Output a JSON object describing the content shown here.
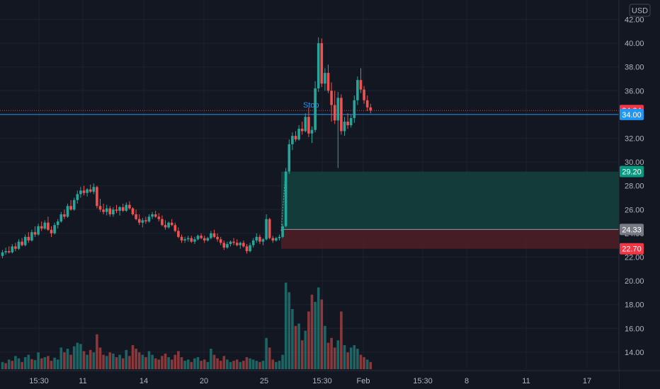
{
  "chart_data": {
    "type": "candlestick",
    "currency": "USD",
    "colors": {
      "background": "#131722",
      "up": "#26a69a",
      "down": "#ef5350",
      "grid": "#1e222d",
      "axis_text": "#b2b5be",
      "target_zone": "#123d3c",
      "stop_zone": "#4a1e26",
      "level_line": "#2196f3",
      "price_line": "#f23645",
      "entry_tag": "#787b86"
    },
    "price_axis": {
      "ticks": [
        "42.00",
        "40.00",
        "38.00",
        "36.00",
        "34.00",
        "32.00",
        "30.00",
        "28.00",
        "26.00",
        "24.00",
        "22.00",
        "20.00",
        "18.00",
        "16.00",
        "14.00"
      ],
      "min": 12.4,
      "max": 43.2
    },
    "time_axis": {
      "ticks": [
        "15:30",
        "11",
        "14",
        "20",
        "25",
        "15:30",
        "Feb",
        "15:30",
        "8",
        "11",
        "17"
      ]
    },
    "price_tags": [
      {
        "label": "34.34",
        "value": 34.34,
        "kind": "price"
      },
      {
        "label": "34.00",
        "value": 34.0,
        "kind": "level"
      },
      {
        "label": "29.20",
        "value": 29.2,
        "kind": "target"
      },
      {
        "label": "24.33",
        "value": 24.33,
        "kind": "entry"
      },
      {
        "label": "22.70",
        "value": 22.7,
        "kind": "stop"
      }
    ],
    "annotation": {
      "text": "Stop",
      "value": 34.0
    },
    "position": {
      "target": 29.2,
      "entry": 24.33,
      "stop": 22.7
    },
    "candles": [
      [
        22.1,
        22.6,
        21.9,
        22.4
      ],
      [
        22.4,
        22.8,
        22.2,
        22.5
      ],
      [
        22.5,
        22.9,
        22.3,
        22.4
      ],
      [
        22.4,
        23.1,
        22.3,
        22.9
      ],
      [
        22.9,
        23.2,
        22.5,
        22.7
      ],
      [
        22.7,
        23.5,
        22.6,
        23.3
      ],
      [
        23.3,
        23.6,
        22.9,
        23.0
      ],
      [
        23.0,
        23.9,
        22.9,
        23.7
      ],
      [
        23.7,
        24.1,
        23.2,
        23.4
      ],
      [
        23.4,
        24.3,
        23.3,
        24.1
      ],
      [
        24.1,
        24.6,
        23.7,
        23.9
      ],
      [
        23.9,
        24.8,
        23.8,
        24.6
      ],
      [
        24.6,
        25.0,
        24.2,
        24.4
      ],
      [
        24.4,
        25.1,
        24.3,
        24.9
      ],
      [
        24.9,
        25.4,
        24.2,
        24.3
      ],
      [
        24.3,
        24.6,
        23.7,
        24.0
      ],
      [
        24.0,
        24.9,
        23.9,
        24.7
      ],
      [
        24.7,
        25.2,
        24.4,
        25.0
      ],
      [
        25.0,
        25.8,
        24.9,
        25.6
      ],
      [
        25.6,
        26.0,
        25.2,
        25.4
      ],
      [
        25.4,
        26.5,
        25.3,
        26.3
      ],
      [
        26.3,
        26.8,
        25.9,
        26.0
      ],
      [
        26.0,
        27.0,
        25.9,
        26.8
      ],
      [
        26.8,
        27.6,
        26.5,
        27.3
      ],
      [
        27.3,
        27.9,
        27.0,
        27.6
      ],
      [
        27.6,
        28.0,
        27.2,
        27.4
      ],
      [
        27.4,
        27.8,
        27.1,
        27.7
      ],
      [
        27.7,
        28.1,
        27.4,
        27.5
      ],
      [
        27.5,
        28.2,
        27.3,
        27.9
      ],
      [
        27.9,
        28.0,
        26.1,
        26.3
      ],
      [
        26.3,
        26.9,
        25.8,
        26.0
      ],
      [
        26.0,
        26.5,
        25.6,
        25.8
      ],
      [
        25.8,
        26.4,
        25.5,
        26.1
      ],
      [
        26.1,
        26.3,
        25.4,
        25.6
      ],
      [
        25.6,
        26.2,
        25.4,
        26.0
      ],
      [
        26.0,
        26.4,
        25.7,
        25.9
      ],
      [
        25.9,
        26.3,
        25.5,
        26.2
      ],
      [
        26.2,
        26.5,
        25.8,
        25.9
      ],
      [
        25.9,
        26.6,
        25.8,
        26.4
      ],
      [
        26.4,
        26.7,
        26.0,
        26.1
      ],
      [
        26.1,
        26.2,
        25.5,
        25.6
      ],
      [
        25.6,
        26.0,
        25.1,
        25.2
      ],
      [
        25.2,
        25.6,
        24.7,
        24.9
      ],
      [
        24.9,
        25.3,
        24.5,
        25.1
      ],
      [
        25.1,
        25.4,
        24.8,
        25.0
      ],
      [
        25.0,
        25.6,
        24.9,
        25.4
      ],
      [
        25.4,
        25.8,
        25.2,
        25.6
      ],
      [
        25.6,
        25.9,
        25.3,
        25.4
      ],
      [
        25.4,
        25.7,
        25.0,
        25.2
      ],
      [
        25.2,
        25.5,
        24.6,
        24.7
      ],
      [
        24.7,
        25.1,
        24.3,
        24.5
      ],
      [
        24.5,
        25.0,
        24.4,
        24.9
      ],
      [
        24.9,
        25.2,
        24.6,
        24.7
      ],
      [
        24.7,
        24.9,
        24.1,
        24.2
      ],
      [
        24.2,
        24.5,
        23.6,
        23.7
      ],
      [
        23.7,
        23.9,
        23.2,
        23.4
      ],
      [
        23.4,
        23.7,
        23.2,
        23.5
      ],
      [
        23.5,
        23.8,
        23.3,
        23.6
      ],
      [
        23.6,
        23.8,
        23.2,
        23.3
      ],
      [
        23.3,
        23.7,
        23.1,
        23.5
      ],
      [
        23.5,
        23.9,
        23.4,
        23.8
      ],
      [
        23.8,
        24.0,
        23.5,
        23.6
      ],
      [
        23.6,
        23.8,
        23.2,
        23.4
      ],
      [
        23.4,
        23.7,
        23.3,
        23.6
      ],
      [
        23.6,
        24.2,
        23.5,
        24.0
      ],
      [
        24.0,
        24.3,
        23.6,
        23.7
      ],
      [
        23.7,
        24.0,
        23.3,
        23.5
      ],
      [
        23.5,
        23.7,
        23.0,
        23.2
      ],
      [
        23.2,
        23.4,
        22.6,
        22.8
      ],
      [
        22.8,
        23.3,
        22.7,
        23.1
      ],
      [
        23.1,
        23.4,
        22.9,
        23.3
      ],
      [
        23.3,
        23.6,
        23.0,
        23.2
      ],
      [
        23.2,
        23.5,
        22.9,
        23.0
      ],
      [
        23.0,
        23.3,
        22.7,
        23.2
      ],
      [
        23.2,
        23.4,
        22.8,
        22.9
      ],
      [
        22.9,
        23.1,
        22.3,
        22.5
      ],
      [
        22.5,
        23.2,
        22.4,
        23.0
      ],
      [
        23.0,
        23.6,
        22.8,
        23.4
      ],
      [
        23.4,
        24.0,
        23.2,
        23.7
      ],
      [
        23.7,
        23.9,
        23.1,
        23.3
      ],
      [
        23.3,
        23.6,
        23.0,
        23.5
      ],
      [
        23.5,
        25.6,
        23.4,
        25.2
      ],
      [
        25.2,
        25.3,
        23.5,
        23.6
      ],
      [
        23.6,
        23.8,
        23.2,
        23.4
      ],
      [
        23.4,
        23.7,
        23.3,
        23.6
      ],
      [
        23.6,
        23.9,
        23.4,
        23.7
      ],
      [
        23.7,
        24.8,
        23.6,
        24.6
      ],
      [
        24.6,
        29.5,
        24.5,
        29.2
      ],
      [
        29.2,
        31.9,
        29.0,
        31.5
      ],
      [
        31.5,
        32.5,
        31.0,
        32.2
      ],
      [
        32.2,
        32.6,
        31.7,
        31.9
      ],
      [
        31.9,
        33.1,
        31.8,
        32.8
      ],
      [
        32.8,
        33.4,
        32.3,
        32.6
      ],
      [
        32.6,
        34.1,
        32.5,
        33.8
      ],
      [
        33.8,
        34.6,
        32.1,
        32.4
      ],
      [
        32.4,
        33.0,
        31.6,
        32.7
      ],
      [
        32.7,
        36.8,
        32.5,
        36.2
      ],
      [
        36.2,
        40.5,
        35.9,
        40.0
      ],
      [
        40.0,
        40.4,
        36.3,
        36.6
      ],
      [
        36.6,
        37.9,
        36.0,
        37.5
      ],
      [
        37.5,
        38.2,
        35.8,
        36.0
      ],
      [
        36.0,
        36.7,
        33.4,
        34.8
      ],
      [
        34.8,
        36.0,
        33.2,
        33.5
      ],
      [
        33.5,
        35.9,
        29.5,
        35.4
      ],
      [
        35.4,
        35.7,
        32.3,
        32.6
      ],
      [
        32.6,
        33.8,
        32.2,
        33.4
      ],
      [
        33.4,
        34.1,
        32.8,
        33.1
      ],
      [
        33.1,
        34.0,
        32.9,
        33.7
      ],
      [
        33.7,
        35.6,
        33.3,
        35.2
      ],
      [
        35.2,
        37.2,
        34.8,
        36.9
      ],
      [
        36.9,
        37.9,
        35.8,
        36.1
      ],
      [
        36.1,
        36.4,
        34.9,
        35.2
      ],
      [
        35.2,
        35.6,
        34.3,
        34.6
      ],
      [
        34.6,
        34.9,
        34.1,
        34.34
      ]
    ],
    "volume": [
      [
        0.3,
        1
      ],
      [
        0.25,
        0
      ],
      [
        0.4,
        1
      ],
      [
        0.35,
        0
      ],
      [
        0.55,
        1
      ],
      [
        0.45,
        1
      ],
      [
        0.3,
        0
      ],
      [
        0.5,
        1
      ],
      [
        0.6,
        1
      ],
      [
        0.42,
        0
      ],
      [
        0.38,
        1
      ],
      [
        0.7,
        1
      ],
      [
        0.45,
        0
      ],
      [
        0.5,
        1
      ],
      [
        0.55,
        0
      ],
      [
        0.35,
        0
      ],
      [
        0.48,
        1
      ],
      [
        0.4,
        1
      ],
      [
        0.9,
        1
      ],
      [
        0.7,
        0
      ],
      [
        0.85,
        1
      ],
      [
        0.6,
        0
      ],
      [
        0.95,
        1
      ],
      [
        1.1,
        1
      ],
      [
        1.05,
        1
      ],
      [
        0.75,
        0
      ],
      [
        0.6,
        1
      ],
      [
        0.8,
        0
      ],
      [
        0.7,
        1
      ],
      [
        1.45,
        0
      ],
      [
        0.9,
        0
      ],
      [
        0.6,
        0
      ],
      [
        0.55,
        1
      ],
      [
        0.7,
        0
      ],
      [
        0.65,
        1
      ],
      [
        0.5,
        0
      ],
      [
        0.6,
        1
      ],
      [
        0.45,
        0
      ],
      [
        0.8,
        1
      ],
      [
        0.55,
        0
      ],
      [
        1.0,
        0
      ],
      [
        0.85,
        0
      ],
      [
        0.7,
        0
      ],
      [
        0.6,
        1
      ],
      [
        0.5,
        0
      ],
      [
        0.75,
        1
      ],
      [
        0.6,
        1
      ],
      [
        0.45,
        0
      ],
      [
        0.4,
        0
      ],
      [
        0.55,
        0
      ],
      [
        0.65,
        0
      ],
      [
        0.5,
        1
      ],
      [
        0.4,
        0
      ],
      [
        0.6,
        0
      ],
      [
        0.75,
        0
      ],
      [
        0.5,
        0
      ],
      [
        0.35,
        1
      ],
      [
        0.4,
        1
      ],
      [
        0.3,
        0
      ],
      [
        0.45,
        1
      ],
      [
        0.5,
        1
      ],
      [
        0.35,
        0
      ],
      [
        0.4,
        0
      ],
      [
        0.3,
        1
      ],
      [
        0.85,
        1
      ],
      [
        0.6,
        0
      ],
      [
        0.45,
        0
      ],
      [
        0.35,
        0
      ],
      [
        0.55,
        0
      ],
      [
        0.4,
        1
      ],
      [
        0.3,
        1
      ],
      [
        0.35,
        0
      ],
      [
        0.4,
        0
      ],
      [
        0.3,
        1
      ],
      [
        0.35,
        0
      ],
      [
        0.5,
        0
      ],
      [
        0.45,
        1
      ],
      [
        0.4,
        1
      ],
      [
        0.35,
        1
      ],
      [
        0.3,
        0
      ],
      [
        0.35,
        1
      ],
      [
        1.3,
        1
      ],
      [
        0.9,
        0
      ],
      [
        0.4,
        0
      ],
      [
        0.3,
        1
      ],
      [
        0.35,
        1
      ],
      [
        0.6,
        1
      ],
      [
        3.6,
        1
      ],
      [
        3.2,
        1
      ],
      [
        2.5,
        1
      ],
      [
        1.8,
        0
      ],
      [
        1.9,
        1
      ],
      [
        1.2,
        0
      ],
      [
        1.6,
        1
      ],
      [
        2.4,
        0
      ],
      [
        3.1,
        0
      ],
      [
        2.8,
        1
      ],
      [
        3.4,
        1
      ],
      [
        2.9,
        0
      ],
      [
        1.8,
        1
      ],
      [
        1.1,
        0
      ],
      [
        1.3,
        0
      ],
      [
        0.9,
        0
      ],
      [
        1.2,
        1
      ],
      [
        2.4,
        0
      ],
      [
        1.0,
        1
      ],
      [
        0.7,
        0
      ],
      [
        0.9,
        1
      ],
      [
        1.0,
        1
      ],
      [
        0.85,
        1
      ],
      [
        0.6,
        0
      ],
      [
        0.5,
        0
      ],
      [
        0.4,
        1
      ],
      [
        0.3,
        0
      ]
    ]
  }
}
